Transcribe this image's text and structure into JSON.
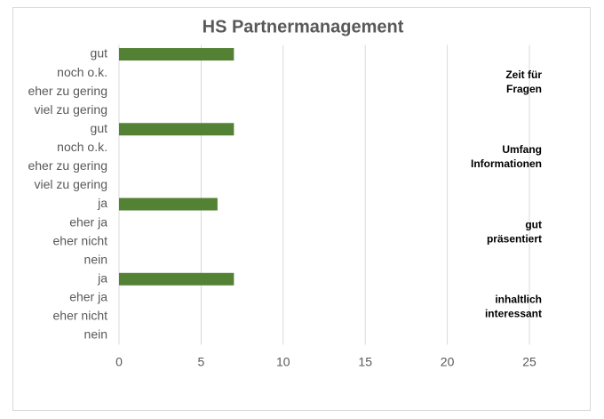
{
  "chart_data": {
    "type": "barh",
    "title": "HS Partnermanagement",
    "categories": [
      "gut",
      "noch o.k.",
      "eher zu gering",
      "viel zu gering",
      "gut",
      "noch o.k.",
      "eher zu gering",
      "viel zu gering",
      "ja",
      "eher ja",
      "eher nicht",
      "nein",
      "ja",
      "eher ja",
      "eher nicht",
      "nein"
    ],
    "values": [
      7,
      0,
      0,
      0,
      7,
      0,
      0,
      0,
      6,
      0,
      0,
      0,
      7,
      0,
      0,
      0
    ],
    "groups": [
      [
        "Zeit für",
        "Fragen"
      ],
      [
        "Umfang",
        "Informationen"
      ],
      [
        "gut",
        "präsentiert"
      ],
      [
        "inhaltlich",
        "interessant"
      ]
    ],
    "color": "#548235",
    "xlim": [
      0,
      25
    ],
    "xticks": [
      0,
      5,
      10,
      15,
      20,
      25
    ],
    "grid": true
  }
}
